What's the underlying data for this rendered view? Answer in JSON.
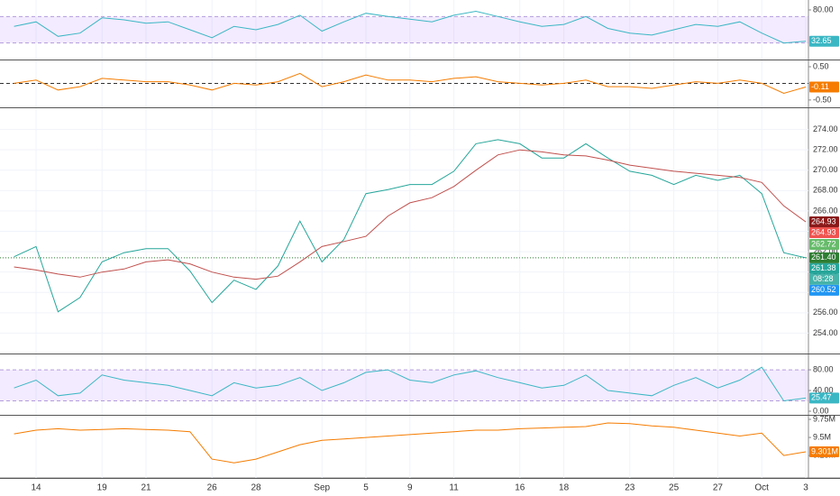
{
  "chart_data": [
    {
      "type": "line",
      "ylim": [
        5,
        95
      ],
      "yticks": [
        {
          "value": 80,
          "label": "80.00"
        }
      ],
      "band": [
        30,
        70
      ],
      "series": [
        {
          "color": "#3bb7c4",
          "badge_color": "#3bb7c4",
          "values": [
            55,
            62,
            40,
            45,
            68,
            65,
            60,
            62,
            50,
            38,
            55,
            50,
            58,
            72,
            48,
            62,
            75,
            70,
            66,
            62,
            72,
            78,
            70,
            62,
            55,
            58,
            70,
            52,
            45,
            42,
            50,
            58,
            55,
            62,
            45,
            30,
            32.65
          ]
        }
      ]
    },
    {
      "type": "line",
      "ylim": [
        -0.72,
        0.69
      ],
      "yticks": [
        {
          "value": 0.5,
          "label": "0.50"
        },
        {
          "value": -0.5,
          "label": "-0.50"
        }
      ],
      "zero_line": 0,
      "series": [
        {
          "color": "#f57c00",
          "badge_color": "#f57c00",
          "values": [
            0,
            0.1,
            -0.2,
            -0.1,
            0.15,
            0.1,
            0.05,
            0.05,
            -0.05,
            -0.2,
            0,
            -0.05,
            0.05,
            0.3,
            -0.1,
            0.05,
            0.25,
            0.1,
            0.1,
            0.05,
            0.15,
            0.2,
            0.05,
            0,
            -0.05,
            0,
            0.1,
            -0.1,
            -0.1,
            -0.15,
            -0.05,
            0.05,
            0,
            0.1,
            0,
            -0.3,
            -0.11
          ]
        }
      ]
    },
    {
      "type": "line",
      "ylim": [
        252,
        276
      ],
      "yticks": [
        {
          "value": 254,
          "label": "254.00"
        },
        {
          "value": 256,
          "label": "256.00"
        },
        {
          "value": 258,
          "label": "258.00"
        },
        {
          "value": 260,
          "label": "260.00"
        },
        {
          "value": 262,
          "label": "262.00"
        },
        {
          "value": 264,
          "label": "264.00"
        },
        {
          "value": 266,
          "label": "266.00"
        },
        {
          "value": 268,
          "label": "268.00"
        },
        {
          "value": 270,
          "label": "270.00"
        },
        {
          "value": 272,
          "label": "272.00"
        },
        {
          "value": 274,
          "label": "274.00"
        }
      ],
      "series": [
        {
          "color": "#26a69a",
          "values": [
            261.5,
            262.5,
            256.1,
            257.5,
            261,
            261.9,
            262.3,
            262.3,
            260.1,
            257,
            259.2,
            258.3,
            260.6,
            265,
            261,
            263.2,
            267.7,
            268.1,
            268.6,
            268.6,
            269.9,
            272.6,
            273,
            272.6,
            271.2,
            271.2,
            272.6,
            271.2,
            269.9,
            269.5,
            268.6,
            269.5,
            269,
            269.5,
            267.7,
            261.9,
            261.4
          ]
        },
        {
          "color": "#c0504d",
          "values": [
            260.5,
            260.2,
            259.8,
            259.5,
            260,
            260.3,
            261,
            261.2,
            260.8,
            260,
            259.5,
            259.3,
            259.6,
            261,
            262.5,
            263,
            263.5,
            265.5,
            266.8,
            267.3,
            268.4,
            270,
            271.5,
            272,
            271.8,
            271.5,
            271.4,
            271,
            270.5,
            270.2,
            269.9,
            269.7,
            269.5,
            269.3,
            268.8,
            266.5,
            264.93
          ]
        }
      ],
      "price_labels": [
        {
          "value": 264.93,
          "color": "#8b1a1a"
        },
        {
          "value": 264.93,
          "color": "#ef5350"
        },
        {
          "value": 262.72,
          "color": "#66bb6a"
        },
        {
          "value": 261.4,
          "label": "261.40",
          "color": "#2e7d32"
        },
        {
          "value": 261.38,
          "color": "#26a69a"
        },
        {
          "value": 260.52,
          "color": "#2196f3"
        }
      ],
      "countdown": "08:28"
    },
    {
      "type": "line",
      "ylim": [
        -7,
        108
      ],
      "yticks": [
        {
          "value": 0,
          "label": "0.00"
        },
        {
          "value": 40,
          "label": "40.00"
        },
        {
          "value": 80,
          "label": "80.00"
        }
      ],
      "band": [
        20,
        80
      ],
      "series": [
        {
          "color": "#3bb7c4",
          "badge_color": "#3bb7c4",
          "values": [
            45,
            60,
            30,
            35,
            70,
            60,
            55,
            50,
            40,
            30,
            55,
            45,
            50,
            65,
            40,
            55,
            75,
            80,
            60,
            55,
            70,
            78,
            65,
            55,
            45,
            50,
            70,
            40,
            35,
            30,
            50,
            65,
            45,
            60,
            85,
            20,
            25.47
          ]
        }
      ]
    },
    {
      "type": "line",
      "ylim": [
        8940000,
        9800000
      ],
      "yticks": [
        {
          "value": 9750000,
          "label": "9.75M"
        },
        {
          "value": 9500000,
          "label": "9.5M"
        },
        {
          "value": 9250000,
          "label": "9.25M"
        }
      ],
      "categories": [
        null,
        "14",
        null,
        null,
        "19",
        null,
        "21",
        null,
        null,
        "26",
        null,
        "28",
        null,
        null,
        "Sep",
        null,
        "5",
        null,
        "9",
        null,
        "11",
        null,
        null,
        "16",
        null,
        "18",
        null,
        null,
        "23",
        null,
        "25",
        null,
        "27",
        null,
        "Oct",
        null,
        "3"
      ],
      "series": [
        {
          "color": "#f57c00",
          "badge_color": "#f57c00",
          "values": [
            9550000,
            9600000,
            9620000,
            9600000,
            9610000,
            9620000,
            9610000,
            9600000,
            9580000,
            9200000,
            9150000,
            9200000,
            9300000,
            9400000,
            9460000,
            9480000,
            9500000,
            9520000,
            9540000,
            9560000,
            9580000,
            9600000,
            9600000,
            9620000,
            9630000,
            9640000,
            9650000,
            9700000,
            9690000,
            9660000,
            9640000,
            9600000,
            9560000,
            9520000,
            9560000,
            9250000,
            9301000
          ],
          "value_labels": [
            null,
            null,
            null,
            null,
            null,
            null,
            null,
            null,
            null,
            null,
            null,
            null,
            null,
            null,
            null,
            null,
            null,
            null,
            null,
            null,
            null,
            null,
            null,
            null,
            null,
            null,
            null,
            null,
            null,
            null,
            null,
            null,
            null,
            null,
            null,
            null,
            "9.301M"
          ]
        }
      ]
    }
  ]
}
